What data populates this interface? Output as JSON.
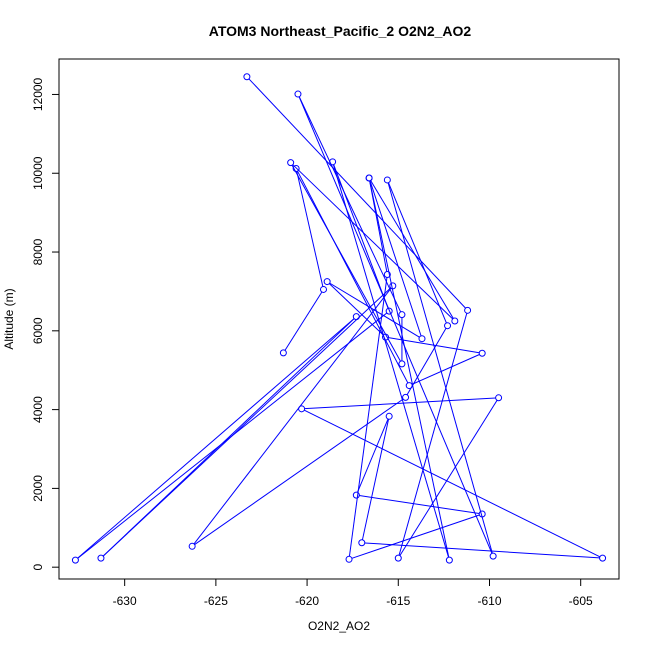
{
  "chart_data": {
    "type": "line",
    "title": "ATOM3 Northeast_Pacific_2 O2N2_AO2",
    "xlabel": "O2N2_AO2",
    "ylabel": "Altitude (m)",
    "xlim": [
      -633.6,
      -602.9
    ],
    "ylim": [
      -300,
      12900
    ],
    "xticks": [
      -630,
      -625,
      -620,
      -615,
      -610,
      -605
    ],
    "yticks": [
      0,
      2000,
      4000,
      6000,
      8000,
      10000,
      12000
    ],
    "grid": false,
    "color": "#0000ff",
    "series": [
      {
        "x": [
          -623.3,
          -611.2,
          -615.0,
          -609.5,
          -620.3,
          -603.8,
          -617.0,
          -615.5,
          -617.3,
          -610.4,
          -617.7,
          -615.6,
          -616.6,
          -612.2,
          -618.6,
          -615.5,
          -632.7,
          -617.3,
          -631.3,
          -615.3,
          -626.3,
          -614.6,
          -612.3,
          -615.6,
          -609.8,
          -620.5,
          -614.8,
          -614.8,
          -620.9,
          -611.9,
          -616.6,
          -613.7,
          -618.9,
          -615.7,
          -610.4,
          -614.4,
          -620.6,
          -619.1,
          -621.3
        ],
        "y": [
          12450,
          6520,
          230,
          4300,
          4020,
          230,
          620,
          3830,
          1830,
          1350,
          200,
          7430,
          9880,
          180,
          10290,
          6500,
          180,
          6360,
          230,
          7140,
          530,
          4310,
          6130,
          9830,
          280,
          12010,
          6410,
          5160,
          10270,
          6250,
          9880,
          5800,
          7250,
          5840,
          5430,
          4610,
          10120,
          7050,
          5440
        ]
      }
    ]
  }
}
